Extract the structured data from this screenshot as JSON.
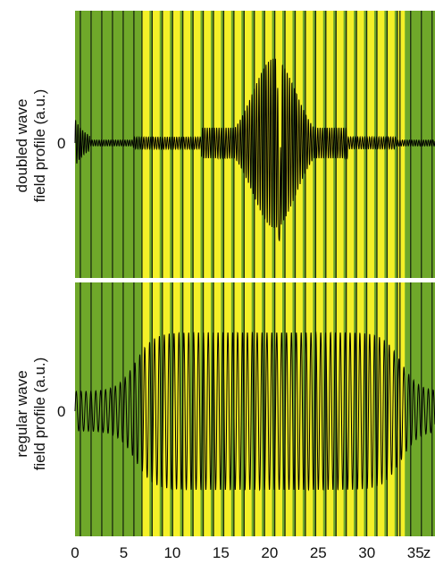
{
  "chart_data": [
    {
      "type": "line",
      "ylabel": [
        "doubled wave",
        "field profile (a.u.)"
      ],
      "yticks": [
        "0"
      ],
      "xlim": [
        0,
        37
      ],
      "ylim": [
        -1,
        1
      ],
      "profile": "cavity-localized, peaks near z = 20.5",
      "background": {
        "layers": [
          "green",
          "yellow"
        ]
      }
    },
    {
      "type": "line",
      "ylabel": [
        "regular wave",
        "field profile (a.u.)"
      ],
      "yticks": [
        "0"
      ],
      "xlim": [
        0,
        37
      ],
      "ylim": [
        -1,
        1
      ],
      "profile": "flat-top band from z = 6 to z = 33",
      "background": {
        "layers": [
          "green",
          "yellow"
        ]
      }
    }
  ],
  "x_axis": {
    "ticks": [
      0,
      5,
      10,
      15,
      20,
      25,
      30,
      35
    ],
    "tick_labels": [
      "0",
      "5",
      "10",
      "15",
      "20",
      "25",
      "30",
      "35"
    ],
    "label": "z",
    "xlim": [
      0,
      37
    ]
  },
  "colors": {
    "green": "#6fa82a",
    "yellow": "#f4f028",
    "boundary": "#1a2a10",
    "curve": "#000000",
    "text": "#111111"
  }
}
